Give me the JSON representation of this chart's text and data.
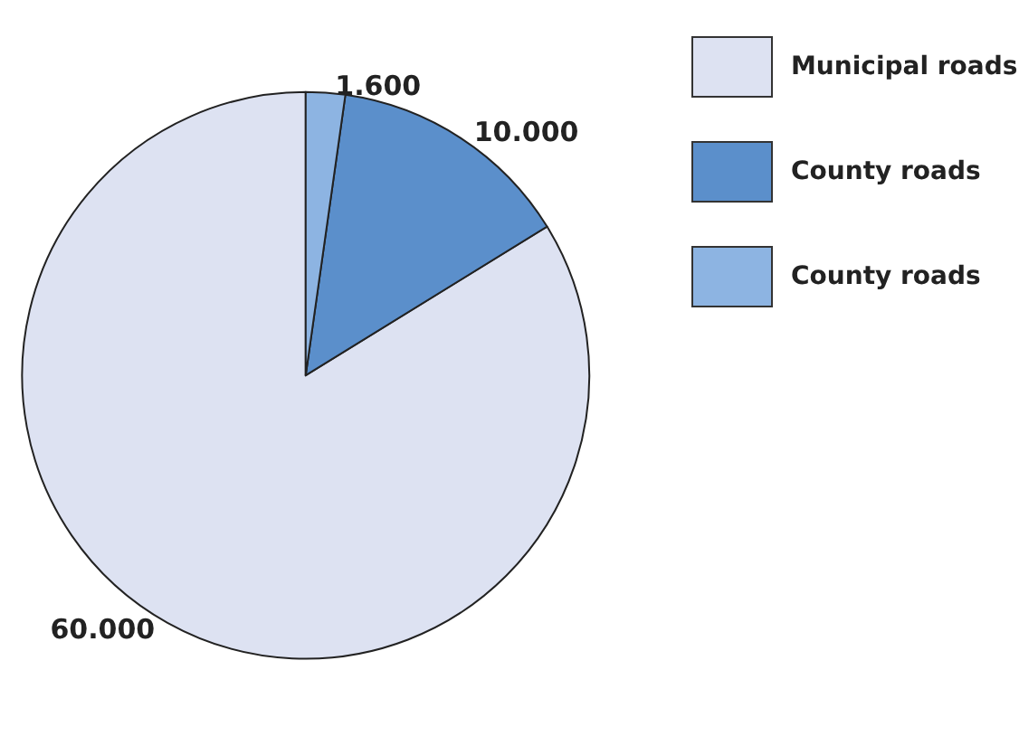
{
  "chart_data": {
    "type": "pie",
    "categories": [
      "Municipal roads",
      "County roads",
      "County roads"
    ],
    "values": [
      60000,
      10000,
      1600
    ],
    "value_labels": [
      "60.000",
      "10.000",
      "1.600"
    ],
    "colors": [
      "#dde2f2",
      "#5b8fcb",
      "#8db4e2"
    ],
    "legend": "right"
  }
}
